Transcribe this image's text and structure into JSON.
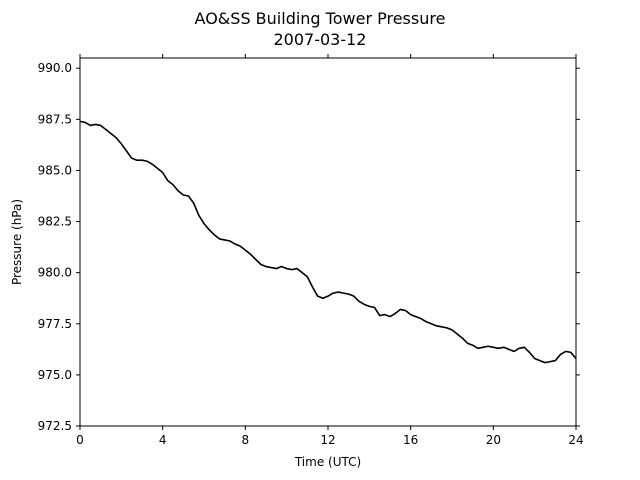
{
  "chart_data": {
    "type": "line",
    "title": "AO&SS Building Tower Pressure",
    "subtitle": "2007-03-12",
    "xlabel": "Time (UTC)",
    "ylabel": "Pressure (hPa)",
    "xlim": [
      0,
      24
    ],
    "ylim": [
      972.5,
      990.5
    ],
    "xticks": [
      0,
      4,
      8,
      12,
      16,
      20,
      24
    ],
    "xtick_labels": [
      "0",
      "4",
      "8",
      "12",
      "16",
      "20",
      "24"
    ],
    "yticks": [
      972.5,
      975.0,
      977.5,
      980.0,
      982.5,
      985.0,
      987.5,
      990.0
    ],
    "ytick_labels": [
      "972.5",
      "975.0",
      "977.5",
      "980.0",
      "982.5",
      "985.0",
      "987.5",
      "990.0"
    ],
    "grid": false,
    "line_color": "#000000",
    "series": [
      {
        "x": [
          0,
          0.25,
          0.5,
          0.75,
          1.0,
          1.25,
          1.5,
          1.75,
          2.0,
          2.25,
          2.5,
          2.75,
          3.0,
          3.25,
          3.5,
          3.75,
          4.0,
          4.25,
          4.5,
          4.75,
          5.0,
          5.25,
          5.5,
          5.75,
          6.0,
          6.25,
          6.5,
          6.75,
          7.0,
          7.25,
          7.5,
          7.75,
          8.0,
          8.25,
          8.5,
          8.75,
          9.0,
          9.25,
          9.5,
          9.75,
          10.0,
          10.25,
          10.5,
          10.75,
          11.0,
          11.25,
          11.5,
          11.75,
          12.0,
          12.25,
          12.5,
          12.75,
          13.0,
          13.25,
          13.5,
          13.75,
          14.0,
          14.25,
          14.5,
          14.75,
          15.0,
          15.25,
          15.5,
          15.75,
          16.0,
          16.25,
          16.5,
          16.75,
          17.0,
          17.25,
          17.5,
          17.75,
          18.0,
          18.25,
          18.5,
          18.75,
          19.0,
          19.25,
          19.5,
          19.75,
          20.0,
          20.25,
          20.5,
          20.75,
          21.0,
          21.25,
          21.5,
          21.75,
          22.0,
          22.25,
          22.5,
          22.75,
          23.0,
          23.25,
          23.5,
          23.75,
          24.0
        ],
        "y": [
          987.4,
          987.35,
          987.2,
          987.25,
          987.2,
          987.0,
          986.8,
          986.6,
          986.3,
          985.95,
          985.6,
          985.5,
          985.5,
          985.45,
          985.3,
          985.1,
          984.9,
          984.5,
          984.3,
          984.0,
          983.8,
          983.75,
          983.4,
          982.8,
          982.4,
          982.1,
          981.85,
          981.65,
          981.6,
          981.55,
          981.4,
          981.3,
          981.1,
          980.9,
          980.65,
          980.4,
          980.3,
          980.25,
          980.2,
          980.3,
          980.2,
          980.15,
          980.2,
          980.0,
          979.8,
          979.3,
          978.85,
          978.75,
          978.85,
          979.0,
          979.05,
          979.0,
          978.95,
          978.85,
          978.6,
          978.45,
          978.35,
          978.3,
          977.9,
          977.95,
          977.85,
          978.0,
          978.2,
          978.15,
          977.95,
          977.85,
          977.75,
          977.6,
          977.5,
          977.4,
          977.35,
          977.3,
          977.2,
          977.0,
          976.8,
          976.55,
          976.45,
          976.3,
          976.35,
          976.4,
          976.35,
          976.3,
          976.35,
          976.25,
          976.15,
          976.3,
          976.35,
          976.1,
          975.8,
          975.7,
          975.6,
          975.65,
          975.7,
          976.0,
          976.15,
          976.1,
          975.8
        ]
      }
    ]
  }
}
